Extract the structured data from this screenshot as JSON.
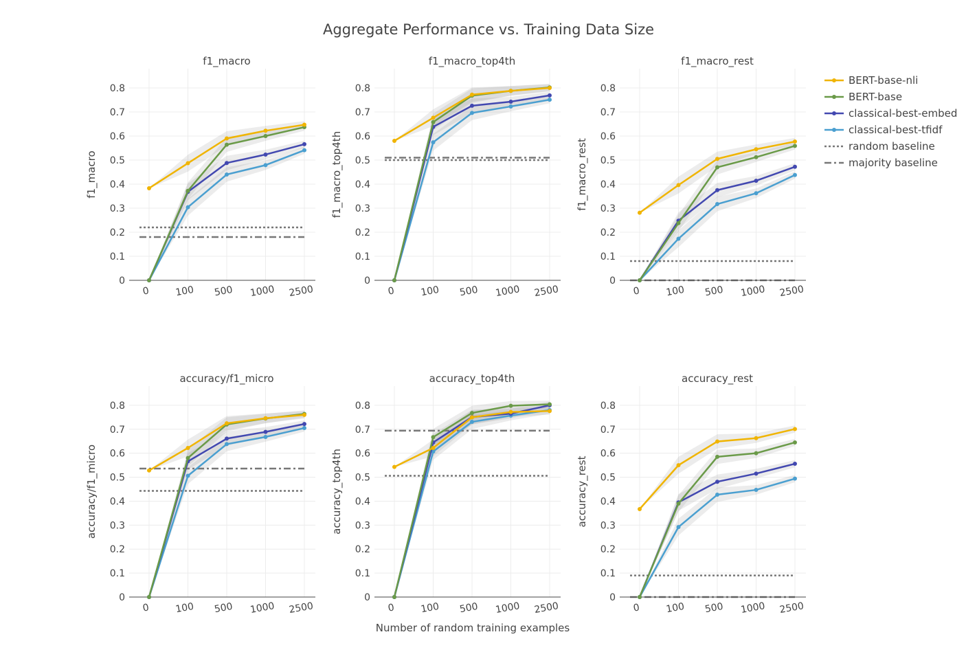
{
  "figure": {
    "title": "Aggregate Performance vs. Training Data Size",
    "xlabel": "Number of random training examples"
  },
  "legend": {
    "position": "top-right",
    "items": [
      {
        "label": "BERT-base-nli",
        "color": "#f0b400",
        "style": "line-marker"
      },
      {
        "label": "BERT-base",
        "color": "#6a9a48",
        "style": "line-marker"
      },
      {
        "label": "classical-best-embed",
        "color": "#4248b0",
        "style": "line-marker"
      },
      {
        "label": "classical-best-tfidf",
        "color": "#4a9fd0",
        "style": "line-marker"
      },
      {
        "label": "random baseline",
        "color": "#777777",
        "style": "dotted"
      },
      {
        "label": "majority baseline",
        "color": "#777777",
        "style": "dashdot"
      }
    ]
  },
  "chart_data": [
    {
      "type": "line",
      "title": "f1_macro",
      "ylabel": "f1_macro",
      "categories": [
        "0",
        "100",
        "500",
        "1000",
        "2500"
      ],
      "ylim": [
        0,
        0.88
      ],
      "yticks": [
        0,
        0.1,
        0.2,
        0.3,
        0.4,
        0.5,
        0.6,
        0.7,
        0.8
      ],
      "grid": true,
      "series": [
        {
          "name": "BERT-base-nli",
          "values": [
            0.383,
            0.487,
            0.59,
            0.622,
            0.647
          ]
        },
        {
          "name": "BERT-base",
          "values": [
            0,
            0.372,
            0.564,
            0.6,
            0.637
          ]
        },
        {
          "name": "classical-best-embed",
          "values": [
            0,
            0.368,
            0.488,
            0.523,
            0.566
          ]
        },
        {
          "name": "classical-best-tfidf",
          "values": [
            0,
            0.304,
            0.44,
            0.479,
            0.541
          ]
        }
      ],
      "baselines": [
        {
          "name": "random baseline",
          "value": 0.22
        },
        {
          "name": "majority baseline",
          "value": 0.18
        }
      ]
    },
    {
      "type": "line",
      "title": "f1_macro_top4th",
      "ylabel": "f1_macro_top4th",
      "categories": [
        "0",
        "100",
        "500",
        "1000",
        "2500"
      ],
      "ylim": [
        0,
        0.88
      ],
      "yticks": [
        0,
        0.1,
        0.2,
        0.3,
        0.4,
        0.5,
        0.6,
        0.7,
        0.8
      ],
      "grid": true,
      "series": [
        {
          "name": "BERT-base-nli",
          "values": [
            0.58,
            0.676,
            0.772,
            0.788,
            0.8
          ]
        },
        {
          "name": "BERT-base",
          "values": [
            0,
            0.658,
            0.768,
            0.788,
            0.802
          ]
        },
        {
          "name": "classical-best-embed",
          "values": [
            0,
            0.638,
            0.726,
            0.743,
            0.769
          ]
        },
        {
          "name": "classical-best-tfidf",
          "values": [
            0,
            0.574,
            0.696,
            0.723,
            0.751
          ]
        }
      ],
      "baselines": [
        {
          "name": "random baseline",
          "value": 0.5
        },
        {
          "name": "majority baseline",
          "value": 0.51
        }
      ]
    },
    {
      "type": "line",
      "title": "f1_macro_rest",
      "ylabel": "f1_macro_rest",
      "categories": [
        "0",
        "100",
        "500",
        "1000",
        "2500"
      ],
      "ylim": [
        0,
        0.88
      ],
      "yticks": [
        0,
        0.1,
        0.2,
        0.3,
        0.4,
        0.5,
        0.6,
        0.7,
        0.8
      ],
      "grid": true,
      "series": [
        {
          "name": "BERT-base-nli",
          "values": [
            0.281,
            0.396,
            0.505,
            0.545,
            0.577
          ]
        },
        {
          "name": "BERT-base",
          "values": [
            0,
            0.238,
            0.47,
            0.512,
            0.559
          ]
        },
        {
          "name": "classical-best-embed",
          "values": [
            0,
            0.248,
            0.375,
            0.414,
            0.472
          ]
        },
        {
          "name": "classical-best-tfidf",
          "values": [
            0,
            0.173,
            0.317,
            0.362,
            0.438
          ]
        }
      ],
      "baselines": [
        {
          "name": "random baseline",
          "value": 0.08
        },
        {
          "name": "majority baseline",
          "value": 0.0
        }
      ]
    },
    {
      "type": "line",
      "title": "accuracy/f1_micro",
      "ylabel": "accuracy/f1_micro",
      "categories": [
        "0",
        "100",
        "500",
        "1000",
        "2500"
      ],
      "ylim": [
        0,
        0.88
      ],
      "yticks": [
        0,
        0.1,
        0.2,
        0.3,
        0.4,
        0.5,
        0.6,
        0.7,
        0.8
      ],
      "grid": true,
      "series": [
        {
          "name": "BERT-base-nli",
          "values": [
            0.528,
            0.622,
            0.725,
            0.746,
            0.76
          ]
        },
        {
          "name": "BERT-base",
          "values": [
            0,
            0.58,
            0.72,
            0.745,
            0.764
          ]
        },
        {
          "name": "classical-best-embed",
          "values": [
            0,
            0.566,
            0.661,
            0.689,
            0.722
          ]
        },
        {
          "name": "classical-best-tfidf",
          "values": [
            0,
            0.506,
            0.638,
            0.668,
            0.705
          ]
        }
      ],
      "baselines": [
        {
          "name": "random baseline",
          "value": 0.443
        },
        {
          "name": "majority baseline",
          "value": 0.536
        }
      ]
    },
    {
      "type": "line",
      "title": "accuracy_top4th",
      "ylabel": "accuracy_top4th",
      "categories": [
        "0",
        "100",
        "500",
        "1000",
        "2500"
      ],
      "ylim": [
        0,
        0.88
      ],
      "yticks": [
        0,
        0.1,
        0.2,
        0.3,
        0.4,
        0.5,
        0.6,
        0.7,
        0.8
      ],
      "grid": true,
      "series": [
        {
          "name": "BERT-base-nli",
          "values": [
            0.543,
            0.622,
            0.75,
            0.772,
            0.776
          ]
        },
        {
          "name": "BERT-base",
          "values": [
            0,
            0.667,
            0.768,
            0.798,
            0.804
          ]
        },
        {
          "name": "classical-best-embed",
          "values": [
            0,
            0.645,
            0.751,
            0.765,
            0.8
          ]
        },
        {
          "name": "classical-best-tfidf",
          "values": [
            0,
            0.607,
            0.731,
            0.757,
            0.78
          ]
        }
      ],
      "baselines": [
        {
          "name": "random baseline",
          "value": 0.506
        },
        {
          "name": "majority baseline",
          "value": 0.694
        }
      ]
    },
    {
      "type": "line",
      "title": "accuracy_rest",
      "ylabel": "accuracy_rest",
      "categories": [
        "0",
        "100",
        "500",
        "1000",
        "2500"
      ],
      "ylim": [
        0,
        0.88
      ],
      "yticks": [
        0,
        0.1,
        0.2,
        0.3,
        0.4,
        0.5,
        0.6,
        0.7,
        0.8
      ],
      "grid": true,
      "series": [
        {
          "name": "BERT-base-nli",
          "values": [
            0.367,
            0.55,
            0.649,
            0.663,
            0.701
          ]
        },
        {
          "name": "BERT-base",
          "values": [
            0,
            0.39,
            0.585,
            0.6,
            0.645
          ]
        },
        {
          "name": "classical-best-embed",
          "values": [
            0,
            0.395,
            0.481,
            0.515,
            0.556
          ]
        },
        {
          "name": "classical-best-tfidf",
          "values": [
            0,
            0.292,
            0.427,
            0.447,
            0.494
          ]
        }
      ],
      "baselines": [
        {
          "name": "random baseline",
          "value": 0.09
        },
        {
          "name": "majority baseline",
          "value": 0.0
        }
      ]
    }
  ]
}
